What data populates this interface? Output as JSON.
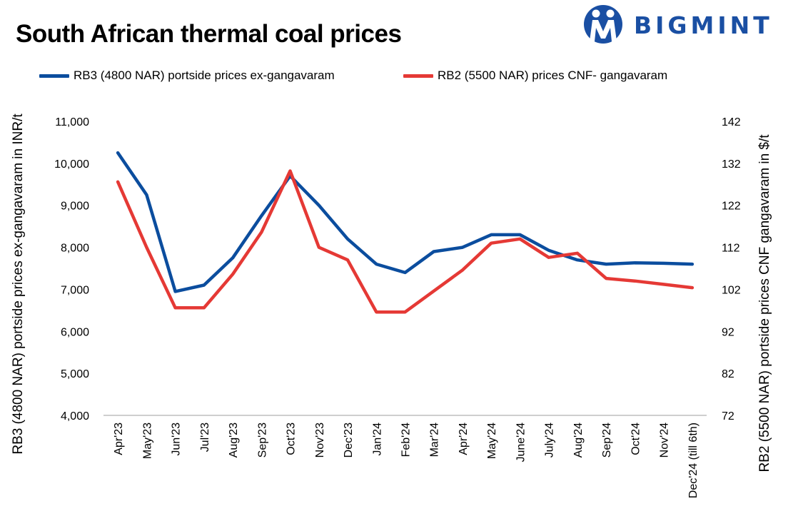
{
  "header": {
    "title": "South African thermal coal prices",
    "brand": "BIGMINT"
  },
  "colors": {
    "rb3": "#0b4d9e",
    "rb2": "#e53935",
    "brand": "#1a4fa3",
    "axis": "#b0b0b0"
  },
  "chart_data": {
    "type": "line",
    "title": "South African thermal coal prices",
    "categories": [
      "Apr'23",
      "May'23",
      "Jun'23",
      "Jul'23",
      "Aug'23",
      "Sep'23",
      "Oct'23",
      "Nov'23",
      "Dec'23",
      "Jan'24",
      "Feb'24",
      "Mar'24",
      "Apr'24",
      "May'24",
      "June'24",
      "July'24",
      "Aug'24",
      "Sep'24",
      "Oct'24",
      "Nov'24",
      "Dec'24 (till 6th)"
    ],
    "series": [
      {
        "name": "RB3 (4800 NAR) portside prices ex-gangavaram",
        "axis": "left",
        "values": [
          10250,
          9250,
          6950,
          7100,
          7750,
          8750,
          9700,
          9000,
          8200,
          7600,
          7400,
          7900,
          8000,
          8300,
          8300,
          7930,
          7700,
          7600,
          7630,
          7620,
          7600
        ]
      },
      {
        "name": "RB2 (5500 NAR) prices CNF- gangavaram",
        "axis": "right",
        "values": [
          127.6,
          112,
          97.6,
          97.6,
          105.6,
          115.6,
          130.2,
          112,
          109,
          96.6,
          96.6,
          101.6,
          106.6,
          113,
          114,
          109.6,
          110.6,
          104.6,
          104,
          103.2,
          102.4
        ]
      }
    ],
    "y_left": {
      "label": "RB3 (4800 NAR) portside prices ex-gangavaram  in INR/t",
      "ylim": [
        4000,
        11000
      ],
      "ticks": [
        "4,000",
        "5,000",
        "6,000",
        "7,000",
        "8,000",
        "9,000",
        "10,000",
        "11,000"
      ],
      "tick_values": [
        4000,
        5000,
        6000,
        7000,
        8000,
        9000,
        10000,
        11000
      ]
    },
    "y_right": {
      "label": "RB2 (5500 NAR) portside prices CNF  gangavaram  in $/t",
      "ylim": [
        72,
        142
      ],
      "ticks": [
        "72",
        "82",
        "92",
        "102",
        "112",
        "122",
        "132",
        "142"
      ],
      "tick_values": [
        72,
        82,
        92,
        102,
        112,
        122,
        132,
        142
      ]
    },
    "grid": false,
    "legend": "top"
  }
}
